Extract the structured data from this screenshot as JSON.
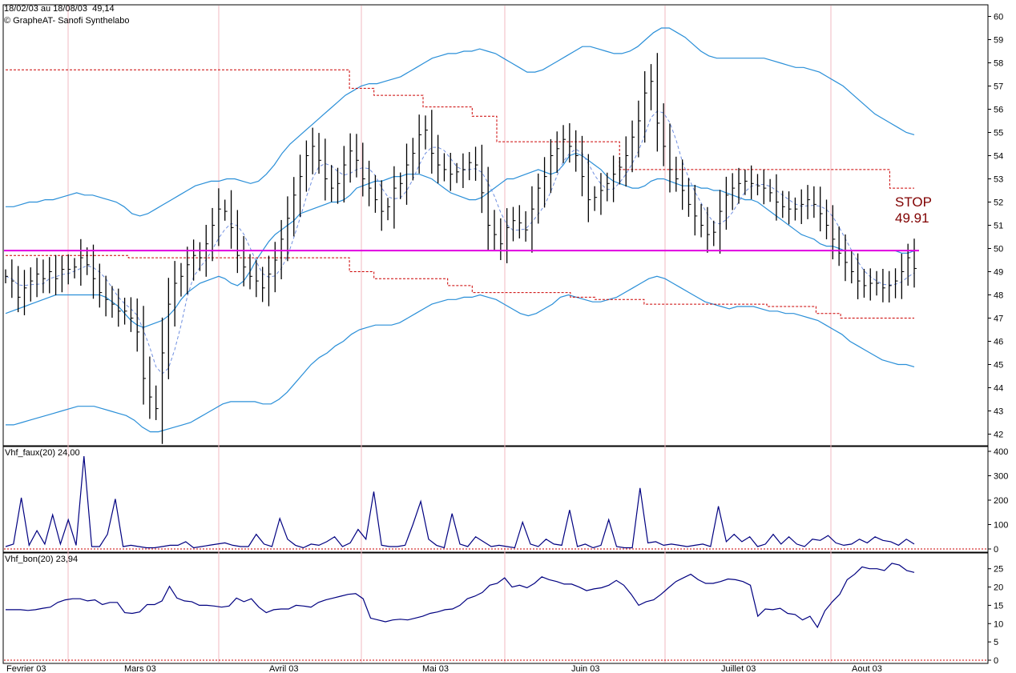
{
  "header": {
    "date_range": "18/02/03 au 18/08/03",
    "last_value": "49,14",
    "source": "© GrapheAT- Sanofi Synthelabo"
  },
  "stop_label": {
    "line1": "STOP",
    "line2": "49.91"
  },
  "colors": {
    "price_bar": "#000000",
    "bollinger": "#2a8fd8",
    "moving_avg_dashed": "#6f8fe0",
    "stop_dotted": "#cc0000",
    "stop_line": "#e000e0",
    "indicator_line": "#000080",
    "grid_vertical": "#f2b8c0",
    "stop_text": "#800000"
  },
  "chart_data": [
    {
      "type": "ohlc",
      "panel": "price",
      "ylim": [
        41.5,
        60.5
      ],
      "y_ticks": [
        "60",
        "59",
        "58",
        "57",
        "56",
        "55",
        "54",
        "53",
        "52",
        "51",
        "50",
        "49",
        "48",
        "47",
        "46",
        "45",
        "44",
        "43",
        "42"
      ],
      "x_tick_labels": [
        "Fevrier 03",
        "Mars 03",
        "Avril 03",
        "Mai 03",
        "Juin 03",
        "Juillet 03",
        "Aout 03"
      ],
      "stop_level": 49.91,
      "series": [
        {
          "name": "price_close",
          "values": [
            48.8,
            48.6,
            47.9,
            48.3,
            48.6,
            48.9,
            48.7,
            49.0,
            48.7,
            49.1,
            49.1,
            49.2,
            49.6,
            49.3,
            48.7,
            48.1,
            47.8,
            47.6,
            47.3,
            47.3,
            47.0,
            46.4,
            44.4,
            43.6,
            43.1,
            45.5,
            47.6,
            48.5,
            48.8,
            49.3,
            49.7,
            49.6,
            50.2,
            51.0,
            51.7,
            51.6,
            50.9,
            49.7,
            49.2,
            48.8,
            48.6,
            48.3,
            48.9,
            49.5,
            50.4,
            51.3,
            52.3,
            53.1,
            54.0,
            54.4,
            53.8,
            53.0,
            52.6,
            52.8,
            53.6,
            54.2,
            53.8,
            53.0,
            52.6,
            52.1,
            51.6,
            51.8,
            52.6,
            52.8,
            53.6,
            54.1,
            54.9,
            55.1,
            54.1,
            53.6,
            53.4,
            53.2,
            53.3,
            53.4,
            53.7,
            53.6,
            52.4,
            51.0,
            50.6,
            50.2,
            50.9,
            51.2,
            51.1,
            50.8,
            51.7,
            52.6,
            53.1,
            54.0,
            54.3,
            54.7,
            54.4,
            54.0,
            53.1,
            52.1,
            52.2,
            52.5,
            52.8,
            53.2,
            53.5,
            54.0,
            54.8,
            55.5,
            56.7,
            57.2,
            55.4,
            54.4,
            53.4,
            53.0,
            52.5,
            51.9,
            51.4,
            51.0,
            50.6,
            50.7,
            51.6,
            52.3,
            52.6,
            52.8,
            52.9,
            52.8,
            52.7,
            52.6,
            52.4,
            52.0,
            51.8,
            51.7,
            51.7,
            51.9,
            52.1,
            51.9,
            51.5,
            51.0,
            50.4,
            49.8,
            49.4,
            49.0,
            48.6,
            48.4,
            48.5,
            48.5,
            48.3,
            48.4,
            48.6,
            49.0,
            49.6,
            49.14
          ]
        },
        {
          "name": "bollinger_mid",
          "values": [
            47.2,
            47.3,
            47.4,
            47.5,
            47.6,
            47.7,
            47.8,
            47.9,
            48.0,
            48.0,
            48.0,
            48.0,
            48.0,
            48.0,
            48.0,
            48.0,
            47.9,
            47.7,
            47.5,
            47.2,
            46.9,
            46.7,
            46.6,
            46.7,
            46.8,
            46.9,
            47.1,
            47.4,
            47.8,
            48.1,
            48.3,
            48.5,
            48.6,
            48.7,
            48.8,
            48.7,
            48.5,
            48.4,
            48.6,
            49.0,
            49.5,
            49.9,
            50.3,
            50.6,
            50.8,
            51.0,
            51.2,
            51.5,
            51.6,
            51.7,
            51.8,
            51.9,
            52.0,
            52.0,
            52.1,
            52.3,
            52.6,
            52.7,
            52.8,
            52.9,
            52.9,
            53.0,
            53.1,
            53.1,
            53.2,
            53.2,
            53.2,
            53.1,
            53.0,
            52.8,
            52.6,
            52.4,
            52.3,
            52.2,
            52.1,
            52.1,
            52.2,
            52.4,
            52.6,
            52.8,
            53.0,
            53.0,
            53.1,
            53.2,
            53.3,
            53.4,
            53.3,
            53.2,
            53.3,
            53.6,
            54.0,
            54.1,
            54.0,
            53.8,
            53.6,
            53.4,
            53.1,
            52.9,
            52.8,
            52.7,
            52.6,
            52.6,
            52.7,
            52.9,
            53.0,
            53.0,
            52.9,
            52.8,
            52.7,
            52.7,
            52.7,
            52.6,
            52.6,
            52.5,
            52.5,
            52.4,
            52.3,
            52.2,
            52.1,
            52.1,
            52.0,
            51.8,
            51.6,
            51.4,
            51.2,
            51.0,
            50.8,
            50.6,
            50.5,
            50.4,
            50.2,
            50.1,
            50.1,
            50.0,
            49.9,
            49.9,
            49.9,
            49.9,
            49.9,
            49.9,
            49.9,
            49.9,
            49.9,
            49.8,
            49.8,
            49.9
          ]
        },
        {
          "name": "bollinger_upper",
          "values": [
            51.8,
            51.8,
            51.9,
            52.0,
            52.0,
            52.1,
            52.1,
            52.2,
            52.3,
            52.4,
            52.3,
            52.3,
            52.2,
            52.1,
            52.0,
            51.8,
            51.5,
            51.4,
            51.5,
            51.7,
            51.9,
            52.1,
            52.3,
            52.5,
            52.7,
            52.8,
            52.9,
            52.9,
            53.0,
            53.0,
            52.9,
            52.8,
            52.9,
            53.2,
            53.6,
            54.1,
            54.5,
            54.8,
            55.1,
            55.4,
            55.7,
            56.0,
            56.3,
            56.6,
            56.8,
            57.0,
            57.1,
            57.1,
            57.2,
            57.3,
            57.4,
            57.6,
            57.8,
            58.0,
            58.2,
            58.3,
            58.4,
            58.4,
            58.5,
            58.5,
            58.6,
            58.5,
            58.4,
            58.2,
            58.0,
            57.8,
            57.6,
            57.6,
            57.7,
            57.9,
            58.1,
            58.3,
            58.5,
            58.7,
            58.7,
            58.6,
            58.5,
            58.4,
            58.4,
            58.5,
            58.7,
            59.0,
            59.3,
            59.5,
            59.5,
            59.3,
            59.1,
            58.8,
            58.5,
            58.3,
            58.2,
            58.2,
            58.2,
            58.2,
            58.2,
            58.2,
            58.2,
            58.1,
            58.0,
            57.9,
            57.8,
            57.8,
            57.7,
            57.6,
            57.4,
            57.2,
            57.0,
            56.7,
            56.4,
            56.1,
            55.8,
            55.6,
            55.4,
            55.2,
            55.0,
            54.9
          ]
        },
        {
          "name": "bollinger_lower",
          "values": [
            42.4,
            42.4,
            42.5,
            42.6,
            42.7,
            42.8,
            42.9,
            43.0,
            43.1,
            43.2,
            43.2,
            43.2,
            43.1,
            43.0,
            42.9,
            42.8,
            42.6,
            42.3,
            42.1,
            42.1,
            42.2,
            42.3,
            42.4,
            42.5,
            42.7,
            42.9,
            43.1,
            43.3,
            43.4,
            43.4,
            43.4,
            43.4,
            43.3,
            43.3,
            43.5,
            43.8,
            44.2,
            44.6,
            45.0,
            45.3,
            45.5,
            45.8,
            46.0,
            46.3,
            46.5,
            46.6,
            46.7,
            46.7,
            46.7,
            46.8,
            47.0,
            47.2,
            47.4,
            47.6,
            47.7,
            47.8,
            47.8,
            47.9,
            47.9,
            48.0,
            47.9,
            47.8,
            47.6,
            47.4,
            47.2,
            47.1,
            47.2,
            47.4,
            47.6,
            47.9,
            48.0,
            47.9,
            47.8,
            47.7,
            47.7,
            47.8,
            47.9,
            48.1,
            48.3,
            48.5,
            48.7,
            48.8,
            48.7,
            48.5,
            48.3,
            48.1,
            47.9,
            47.7,
            47.6,
            47.5,
            47.4,
            47.5,
            47.5,
            47.5,
            47.4,
            47.3,
            47.3,
            47.2,
            47.2,
            47.1,
            47.0,
            46.9,
            46.7,
            46.5,
            46.3,
            46.0,
            45.8,
            45.6,
            45.4,
            45.2,
            45.1,
            45.0,
            45.0,
            44.9
          ]
        },
        {
          "name": "stop_upper",
          "values": [
            57.7,
            57.7,
            57.7,
            57.7,
            57.7,
            57.7,
            57.7,
            57.7,
            57.7,
            57.7,
            57.7,
            57.7,
            57.7,
            57.7,
            56.9,
            56.6,
            56.6,
            56.1,
            56.1,
            55.7,
            54.6,
            54.6,
            54.6,
            54.6,
            54.6,
            53.4,
            53.4,
            53.4,
            53.4,
            53.4,
            53.4,
            53.4,
            53.4,
            53.4,
            53.4,
            53.4,
            52.6
          ]
        },
        {
          "name": "stop_lower",
          "values": [
            49.7,
            49.7,
            49.7,
            49.7,
            49.7,
            49.6,
            49.6,
            49.6,
            49.6,
            49.6,
            49.6,
            49.6,
            49.6,
            49.6,
            49.0,
            48.7,
            48.7,
            48.7,
            48.4,
            48.1,
            48.1,
            48.1,
            48.1,
            47.9,
            47.8,
            47.8,
            47.6,
            47.6,
            47.6,
            47.6,
            47.6,
            47.5,
            47.5,
            47.2,
            47.0,
            47.0,
            47.0
          ]
        }
      ]
    },
    {
      "type": "line",
      "panel": "indicator",
      "title": "Vhf_faux(20)",
      "last_value": "24,00",
      "ylim": [
        0,
        400
      ],
      "y_ticks": [
        "400",
        "300",
        "200",
        "100",
        "0"
      ],
      "series": [
        {
          "name": "Vhf_faux(20)",
          "values": [
            10,
            20,
            210,
            15,
            75,
            20,
            140,
            20,
            120,
            15,
            380,
            10,
            10,
            60,
            205,
            10,
            15,
            10,
            5,
            5,
            10,
            15,
            15,
            30,
            5,
            10,
            15,
            20,
            25,
            15,
            10,
            10,
            60,
            20,
            10,
            125,
            40,
            15,
            5,
            20,
            15,
            30,
            50,
            10,
            25,
            80,
            40,
            235,
            15,
            10,
            10,
            15,
            100,
            195,
            40,
            15,
            5,
            145,
            20,
            10,
            50,
            30,
            10,
            15,
            10,
            5,
            110,
            20,
            10,
            40,
            20,
            15,
            160,
            10,
            20,
            5,
            15,
            120,
            10,
            5,
            5,
            250,
            25,
            30,
            15,
            20,
            15,
            10,
            15,
            20,
            10,
            175,
            30,
            60,
            30,
            50,
            10,
            20,
            60,
            20,
            50,
            20,
            10,
            40,
            35,
            55,
            25,
            15,
            20,
            40,
            25,
            50,
            35,
            30,
            15,
            40,
            20
          ]
        }
      ]
    },
    {
      "type": "line",
      "panel": "indicator",
      "title": "Vhf_bon(20)",
      "last_value": "23,94",
      "ylim": [
        0,
        28
      ],
      "y_ticks": [
        "25",
        "20",
        "15",
        "10",
        "5",
        "0"
      ],
      "series": [
        {
          "name": "Vhf_bon(20)",
          "values": [
            13.8,
            13.8,
            13.8,
            13.6,
            13.8,
            14.2,
            14.5,
            15.8,
            16.5,
            16.8,
            16.8,
            16.2,
            16.5,
            15.2,
            15.8,
            15.8,
            13.0,
            12.8,
            13.2,
            15.2,
            15.2,
            16.2,
            20.2,
            17.0,
            16.2,
            16.0,
            15.0,
            15.0,
            14.8,
            14.5,
            14.8,
            17.0,
            16.0,
            16.8,
            14.5,
            13.0,
            13.8,
            14.0,
            14.0,
            15.0,
            14.8,
            14.5,
            15.8,
            16.5,
            17.0,
            17.5,
            18.0,
            18.2,
            16.8,
            11.5,
            11.0,
            10.5,
            11.0,
            11.2,
            11.0,
            11.5,
            12.0,
            12.8,
            13.2,
            13.8,
            14.0,
            15.0,
            16.8,
            17.5,
            18.5,
            20.5,
            21.0,
            22.5,
            20.0,
            20.5,
            19.8,
            21.0,
            22.8,
            22.0,
            21.5,
            20.8,
            20.8,
            20.0,
            19.0,
            19.5,
            19.8,
            20.5,
            21.8,
            20.5,
            18.0,
            15.0,
            16.0,
            16.5,
            18.0,
            19.8,
            21.5,
            22.5,
            23.5,
            22.0,
            21.0,
            21.0,
            21.5,
            22.2,
            22.0,
            21.5,
            20.5,
            12.0,
            14.0,
            13.8,
            14.2,
            12.8,
            12.5,
            11.0,
            12.0,
            9.0,
            13.5,
            16.0,
            18.0,
            22.0,
            23.5,
            25.5,
            25.0,
            25.0,
            24.5,
            26.5,
            26.0,
            24.5,
            24.0
          ]
        }
      ]
    }
  ]
}
